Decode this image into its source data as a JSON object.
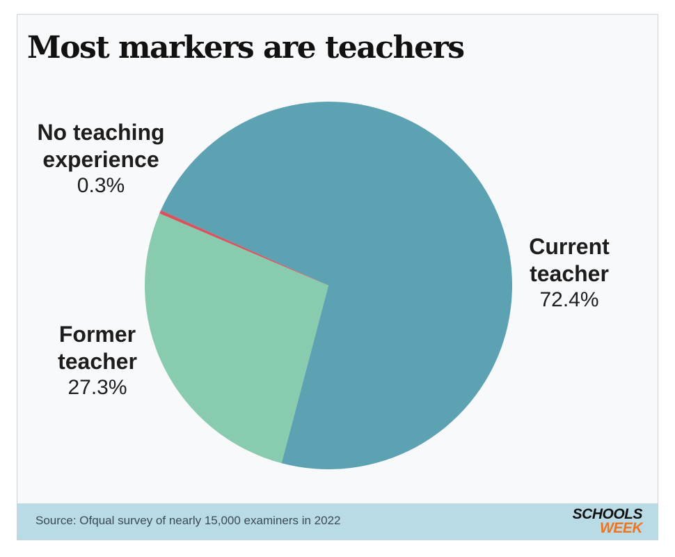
{
  "chart_data": {
    "type": "pie",
    "title": "Most markers are teachers",
    "slices": [
      {
        "label": "Current teacher",
        "label_lines": [
          "Current",
          "teacher"
        ],
        "value": 72.4,
        "value_text": "72.4%",
        "color": "#5ca2b2"
      },
      {
        "label": "Former teacher",
        "label_lines": [
          "Former",
          "teacher"
        ],
        "value": 27.3,
        "value_text": "27.3%",
        "color": "#89cbae"
      },
      {
        "label": "No teaching experience",
        "label_lines": [
          "No teaching",
          "experience"
        ],
        "value": 0.3,
        "value_text": "0.3%",
        "color": "#d9535f"
      }
    ]
  },
  "footer": {
    "source": "Source: Ofqual survey of nearly 15,000 examiners in 2022",
    "logo_line1": "SCHOOLS",
    "logo_line2": "WEEK"
  },
  "colors": {
    "background": "#f7f9fb",
    "footer": "#b9dbe6",
    "logo_accent": "#f0731e"
  }
}
